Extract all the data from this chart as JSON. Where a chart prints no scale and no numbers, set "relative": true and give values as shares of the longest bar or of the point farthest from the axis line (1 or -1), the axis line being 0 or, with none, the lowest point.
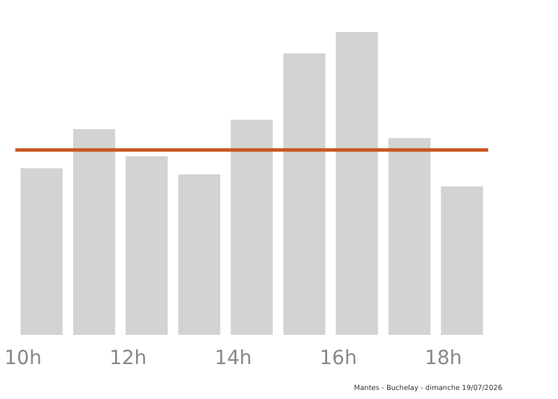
{
  "chart_data": {
    "type": "bar",
    "relative": true,
    "categories": [
      "10h",
      null,
      "12h",
      null,
      "14h",
      null,
      "16h",
      null,
      "18h"
    ],
    "values": [
      0.55,
      0.68,
      0.59,
      0.53,
      0.71,
      0.93,
      1,
      0.65,
      0.49
    ],
    "color": "#d3d3d3",
    "ref_lines": [
      {
        "axis": "y",
        "value": 0.61,
        "label": null,
        "color": "#c8561e"
      }
    ],
    "annotations": [
      "Mantes - Buchelay - dimanche 19/07/2026"
    ]
  }
}
